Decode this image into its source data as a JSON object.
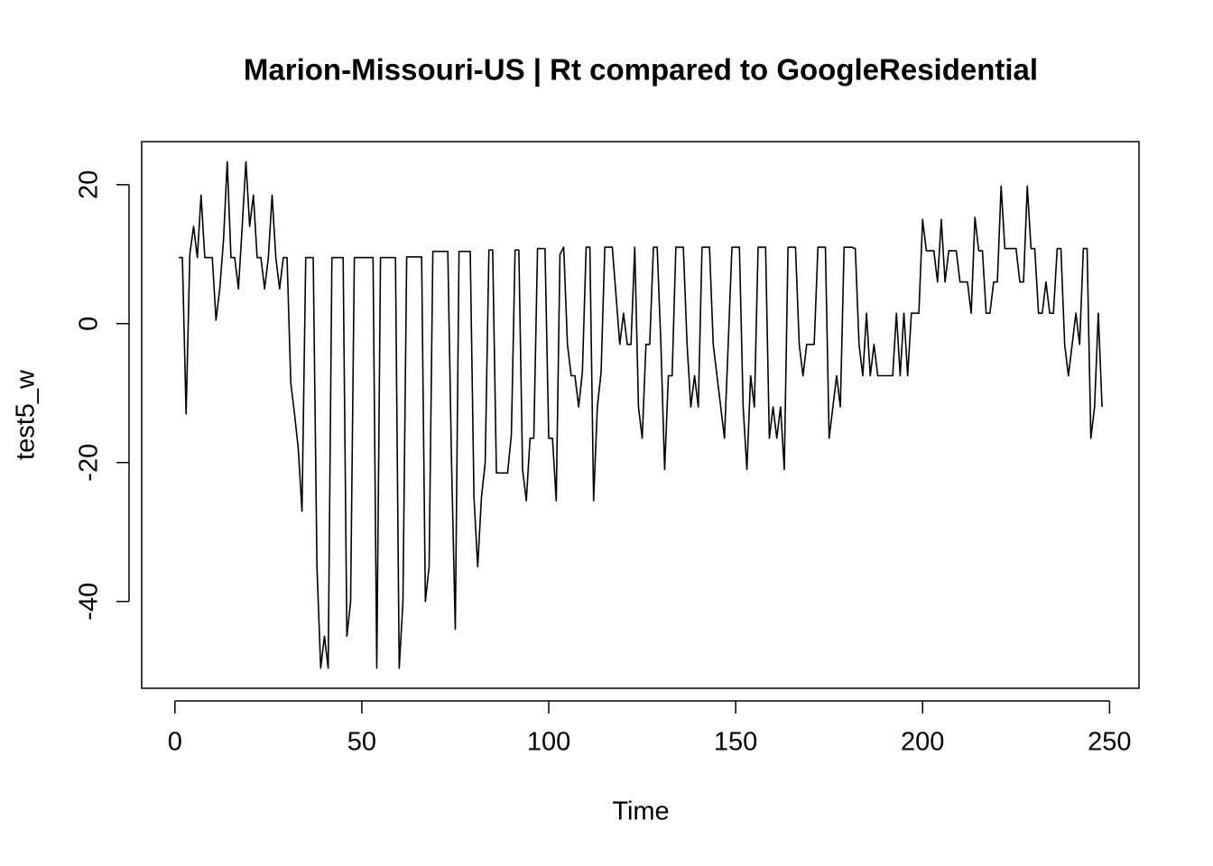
{
  "chart_data": {
    "type": "line",
    "title": "Marion-Missouri-US | Rt compared to GoogleResidential",
    "x_label": "Time",
    "y_label": "test5_w",
    "color": "#000000",
    "x": [
      1,
      2,
      3,
      4,
      5,
      6,
      7,
      8,
      9,
      10,
      11,
      12,
      13,
      14,
      15,
      16,
      17,
      18,
      19,
      20,
      21,
      22,
      23,
      24,
      25,
      26,
      27,
      28,
      29,
      30,
      31,
      32,
      33,
      34,
      35,
      36,
      37,
      38,
      39,
      40,
      41,
      42,
      43,
      44,
      45,
      46,
      47,
      48,
      49,
      50,
      51,
      52,
      53,
      54,
      55,
      56,
      57,
      58,
      59,
      60,
      61,
      62,
      63,
      64,
      65,
      66,
      67,
      68,
      69,
      70,
      71,
      72,
      73,
      74,
      75,
      76,
      77,
      78,
      79,
      80,
      81,
      82,
      83,
      84,
      85,
      86,
      87,
      88,
      89,
      90,
      91,
      92,
      93,
      94,
      95,
      96,
      97,
      98,
      99,
      100,
      101,
      102,
      103,
      104,
      105,
      106,
      107,
      108,
      109,
      110,
      111,
      112,
      113,
      114,
      115,
      116,
      117,
      118,
      119,
      120,
      121,
      122,
      123,
      124,
      125,
      126,
      127,
      128,
      129,
      130,
      131,
      132,
      133,
      134,
      135,
      136,
      137,
      138,
      139,
      140,
      141,
      142,
      143,
      144,
      145,
      146,
      147,
      148,
      149,
      150,
      151,
      152,
      153,
      154,
      155,
      156,
      157,
      158,
      159,
      160,
      161,
      162,
      163,
      164,
      165,
      166,
      167,
      168,
      169,
      170,
      171,
      172,
      173,
      174,
      175,
      176,
      177,
      178,
      179,
      180,
      181,
      182,
      183,
      184,
      185,
      186,
      187,
      188,
      189,
      190,
      191,
      192,
      193,
      194,
      195,
      196,
      197,
      198,
      199,
      200,
      201,
      202,
      203,
      204,
      205,
      206,
      207,
      208,
      209,
      210,
      211,
      212,
      213,
      214,
      215,
      216,
      217,
      218,
      219,
      220,
      221,
      222,
      223,
      224,
      225,
      226,
      227,
      228,
      229,
      230,
      231,
      232,
      233,
      234,
      235,
      236,
      237,
      238,
      239,
      240,
      241,
      242,
      243,
      244,
      245,
      246,
      247,
      248
    ],
    "values": [
      9.5,
      9.5,
      -13,
      10,
      14,
      9.5,
      18.5,
      9.5,
      9.5,
      9.5,
      0.5,
      5,
      12,
      23.3,
      9.5,
      9.5,
      5,
      14,
      23.3,
      14,
      18.5,
      9.5,
      9.5,
      5,
      9.5,
      18.5,
      9.5,
      5,
      9.5,
      9.5,
      -8.5,
      -13,
      -18,
      -27,
      9.5,
      9.5,
      9.5,
      -35,
      -49.6,
      -45,
      -49.6,
      9.5,
      9.5,
      9.5,
      9.5,
      -45,
      -40,
      9.5,
      9.5,
      9.5,
      9.5,
      9.5,
      9.5,
      -49.6,
      9.5,
      9.5,
      9.5,
      9.5,
      9.5,
      -49.6,
      -40,
      9.6,
      9.6,
      9.6,
      9.6,
      9.6,
      -40,
      -35,
      10.4,
      10.4,
      10.4,
      10.4,
      10.4,
      -20,
      -44,
      10.4,
      10.4,
      10.4,
      10.4,
      -25,
      -35,
      -25,
      -20,
      10.6,
      10.6,
      -21.5,
      -21.5,
      -21.5,
      -21.5,
      -16,
      10.6,
      10.6,
      -21,
      -25.5,
      -16.5,
      -16.5,
      10.8,
      10.8,
      10.8,
      -16.5,
      -16.5,
      -25.5,
      10,
      11,
      -3,
      -7.5,
      -7.5,
      -12,
      -7,
      11,
      11,
      -25.5,
      -12,
      -7,
      11,
      11,
      11,
      4,
      -3,
      1.5,
      -3,
      -3,
      11,
      -12,
      -16.5,
      -3,
      -3,
      11,
      11,
      -3,
      -21,
      -7.5,
      -7.5,
      11,
      11,
      11,
      -3,
      -12,
      -7.5,
      -12,
      11,
      11,
      11,
      -3,
      -7.5,
      -12,
      -16.5,
      -3,
      11,
      11,
      11,
      -12,
      -21,
      -7.5,
      -12,
      11,
      11,
      11,
      -16.5,
      -12,
      -16.5,
      -12,
      -21,
      11,
      11,
      11,
      -3,
      -7.5,
      -3,
      -3,
      -3,
      11,
      11,
      11,
      -16.5,
      -12,
      -7.5,
      -12,
      11,
      11,
      11,
      10.8,
      -3,
      -7.5,
      1.5,
      -7.5,
      -3,
      -7.5,
      -7.5,
      -7.5,
      -7.5,
      -7.5,
      1.5,
      -7.5,
      1.5,
      -7.5,
      1.5,
      1.5,
      1.5,
      15,
      10.5,
      10.5,
      10.5,
      6,
      15,
      6,
      10.5,
      10.5,
      10.5,
      6,
      6,
      6,
      1.5,
      15.3,
      10.5,
      10.5,
      1.5,
      1.5,
      6,
      6,
      19.8,
      10.8,
      10.8,
      10.8,
      10.8,
      6,
      6,
      19.8,
      10.8,
      10.8,
      1.5,
      1.5,
      6,
      1.5,
      1.5,
      10.8,
      10.8,
      -3,
      -7.5,
      -3,
      1.5,
      -3,
      10.8,
      10.8,
      -16.5,
      -12,
      1.5,
      -12
    ],
    "xlim": [
      -8.88,
      257.88
    ],
    "ylim": [
      -52.5,
      26.2
    ],
    "xticks": [
      0,
      50,
      100,
      150,
      200,
      250
    ],
    "yticks": [
      -40,
      -20,
      0,
      20
    ]
  }
}
